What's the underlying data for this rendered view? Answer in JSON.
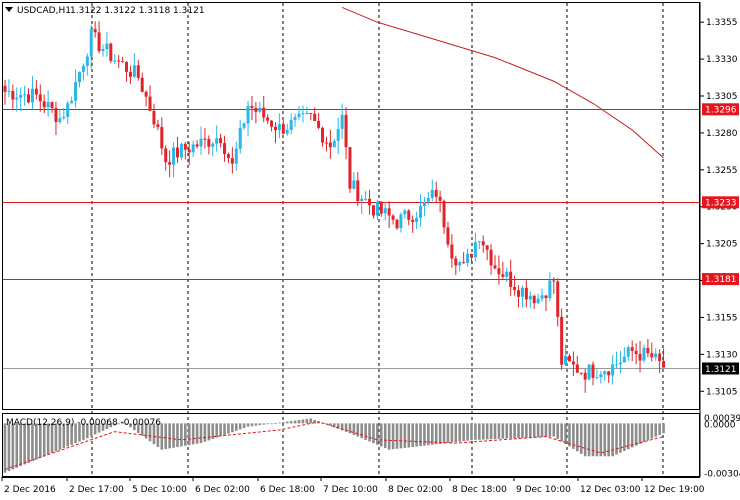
{
  "header": {
    "symbol": "USDCAD,H1",
    "ohlc": "1.3122 1.3122 1.3118 1.3121",
    "macd_label": "MACD(12,26,9) -0.00068 -0.00076"
  },
  "colors": {
    "bull": "#27b8e8",
    "bear": "#e0242a",
    "level_line": "#e8141b",
    "ma_line": "#c31f1f",
    "price_box": "#000000",
    "macd_hist": "#8c8c8c",
    "macd_signal": "#e8141b"
  },
  "chart_data": [
    {
      "type": "candlestick",
      "title": "USDCAD,H1",
      "x_labels": [
        "2 Dec 2016",
        "2 Dec 17:00",
        "5 Dec 10:00",
        "6 Dec 02:00",
        "6 Dec 18:00",
        "7 Dec 10:00",
        "8 Dec 02:00",
        "8 Dec 18:00",
        "9 Dec 10:00",
        "12 Dec 03:00",
        "12 Dec 19:00"
      ],
      "y_ticks": [
        1.3355,
        1.333,
        1.3305,
        1.328,
        1.3255,
        1.323,
        1.3205,
        1.318,
        1.3155,
        1.313,
        1.3105
      ],
      "ylim": [
        1.3093,
        1.3368
      ],
      "horizontal_levels": [
        {
          "label": "1.3296",
          "value": 1.3296
        },
        {
          "label": "1.3233",
          "value": 1.3233
        },
        {
          "label": "1.3181",
          "value": 1.3181
        }
      ],
      "current_price": {
        "label": "1.3121",
        "value": 1.3121
      },
      "moving_average": [
        {
          "x": 86,
          "y": 1.3365
        },
        {
          "x": 95,
          "y": 1.3355
        },
        {
          "x": 110,
          "y": 1.3343
        },
        {
          "x": 125,
          "y": 1.3331
        },
        {
          "x": 140,
          "y": 1.3315
        },
        {
          "x": 150,
          "y": 1.33
        },
        {
          "x": 160,
          "y": 1.3282
        },
        {
          "x": 168,
          "y": 1.3263
        }
      ],
      "pivots": [
        {
          "i": 0,
          "p": 1.3308
        },
        {
          "i": 8,
          "p": 1.3305
        },
        {
          "i": 14,
          "p": 1.329
        },
        {
          "i": 16,
          "p": 1.3298
        },
        {
          "i": 22,
          "p": 1.3345
        },
        {
          "i": 28,
          "p": 1.333
        },
        {
          "i": 34,
          "p": 1.3318
        },
        {
          "i": 38,
          "p": 1.329
        },
        {
          "i": 41,
          "p": 1.3262
        },
        {
          "i": 45,
          "p": 1.3268
        },
        {
          "i": 55,
          "p": 1.3278
        },
        {
          "i": 58,
          "p": 1.3257
        },
        {
          "i": 62,
          "p": 1.3299
        },
        {
          "i": 70,
          "p": 1.3283
        },
        {
          "i": 78,
          "p": 1.329
        },
        {
          "i": 83,
          "p": 1.3272
        },
        {
          "i": 86,
          "p": 1.329
        },
        {
          "i": 88,
          "p": 1.3245
        },
        {
          "i": 94,
          "p": 1.3229
        },
        {
          "i": 100,
          "p": 1.322
        },
        {
          "i": 106,
          "p": 1.3228
        },
        {
          "i": 110,
          "p": 1.324
        },
        {
          "i": 114,
          "p": 1.32
        },
        {
          "i": 117,
          "p": 1.3188
        },
        {
          "i": 121,
          "p": 1.3212
        },
        {
          "i": 125,
          "p": 1.319
        },
        {
          "i": 131,
          "p": 1.3175
        },
        {
          "i": 136,
          "p": 1.3168
        },
        {
          "i": 140,
          "p": 1.318
        },
        {
          "i": 142,
          "p": 1.3125
        },
        {
          "i": 148,
          "p": 1.3118
        },
        {
          "i": 155,
          "p": 1.3122
        },
        {
          "i": 160,
          "p": 1.3132
        },
        {
          "i": 165,
          "p": 1.3128
        },
        {
          "i": 168,
          "p": 1.3121
        }
      ],
      "macd": {
        "zero_label": "0.0000",
        "top_label": "0.00039",
        "bottom_label": "-0.00304",
        "ylim": [
          -0.0032,
          0.00045
        ],
        "histogram_pivots": [
          {
            "i": 0,
            "v": -0.003
          },
          {
            "i": 20,
            "v": -0.001
          },
          {
            "i": 30,
            "v": 0.0001
          },
          {
            "i": 40,
            "v": -0.0016
          },
          {
            "i": 50,
            "v": -0.0012
          },
          {
            "i": 62,
            "v": -0.0002
          },
          {
            "i": 78,
            "v": 0.0003
          },
          {
            "i": 88,
            "v": -0.0006
          },
          {
            "i": 98,
            "v": -0.0016
          },
          {
            "i": 120,
            "v": -0.001
          },
          {
            "i": 140,
            "v": -0.0008
          },
          {
            "i": 148,
            "v": -0.002
          },
          {
            "i": 155,
            "v": -0.002
          },
          {
            "i": 168,
            "v": -0.0006
          }
        ],
        "signal_pivots": [
          {
            "i": 0,
            "v": -0.0028
          },
          {
            "i": 28,
            "v": -0.0005
          },
          {
            "i": 45,
            "v": -0.001
          },
          {
            "i": 70,
            "v": -0.0004
          },
          {
            "i": 80,
            "v": 0.0001
          },
          {
            "i": 95,
            "v": -0.001
          },
          {
            "i": 115,
            "v": -0.0012
          },
          {
            "i": 138,
            "v": -0.0008
          },
          {
            "i": 152,
            "v": -0.0018
          },
          {
            "i": 168,
            "v": -0.0008
          }
        ]
      }
    }
  ]
}
